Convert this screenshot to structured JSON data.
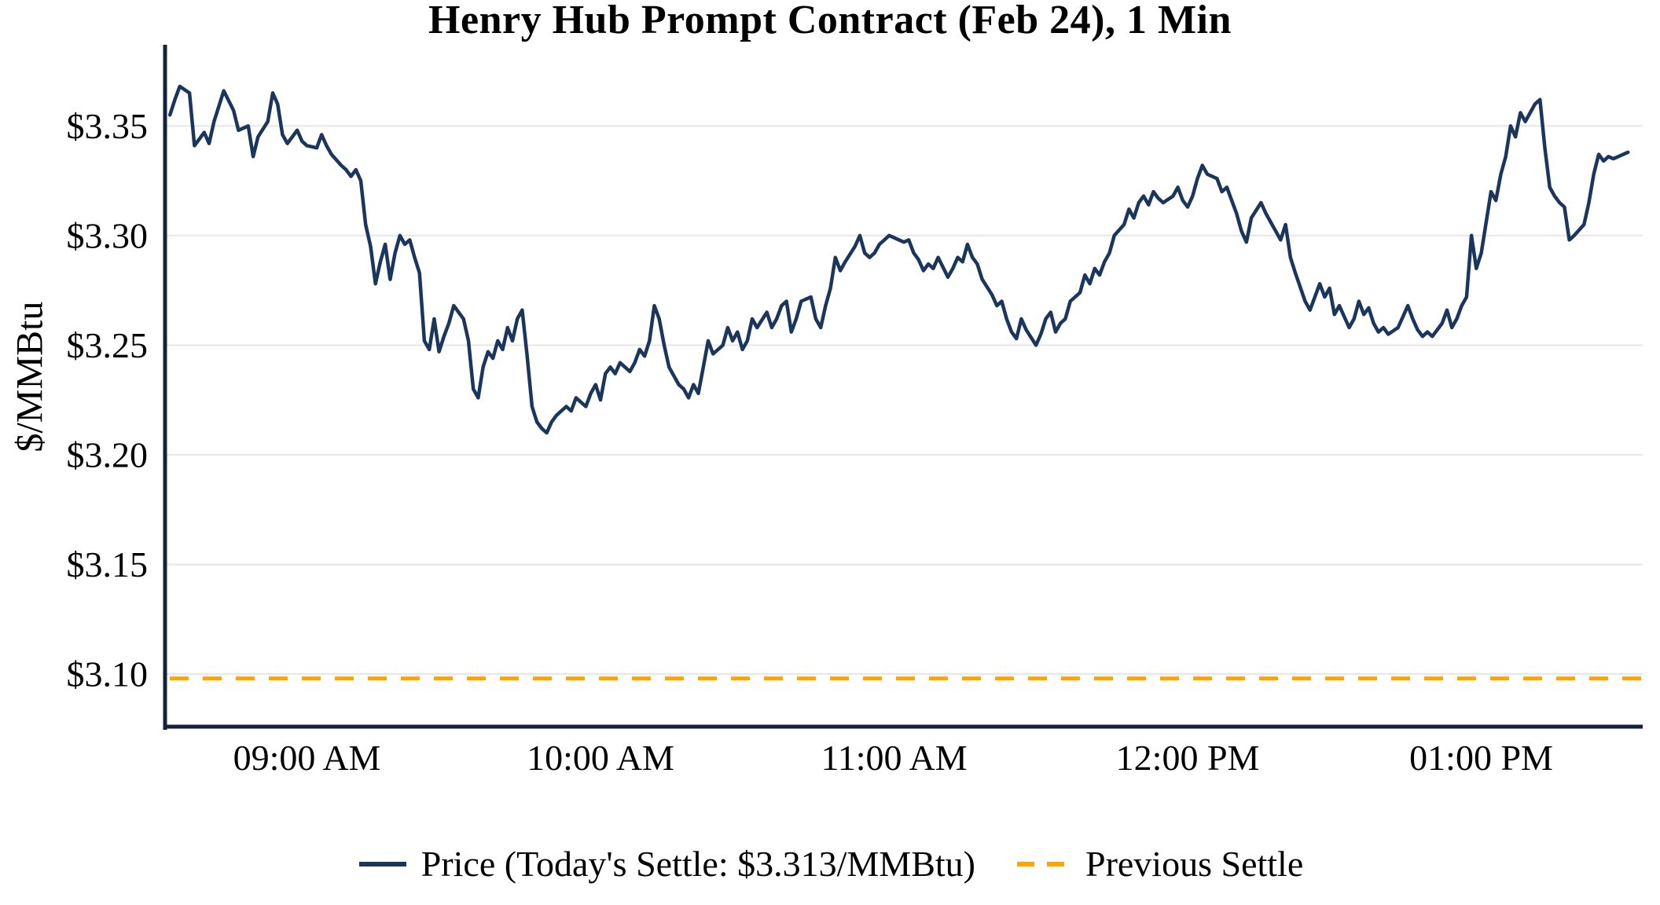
{
  "title": "Henry Hub Prompt Contract (Feb 24), 1 Min",
  "y_axis_label": "$/MMBtu",
  "legend": {
    "price_label": "Price (Today's Settle: $3.313/MMBtu)",
    "previous_settle_label": "Previous Settle"
  },
  "colors": {
    "price_line": "#1b365d",
    "previous_settle": "#FFA500",
    "grid": "#e7e7e7",
    "axis": "#14213d"
  },
  "chart_data": {
    "type": "line",
    "title": "Henry Hub Prompt Contract (Feb 24), 1 Min",
    "xlabel": "",
    "ylabel": "$/MMBtu",
    "x_unit": "minutes-of-day",
    "xlim": [
      511,
      813
    ],
    "ylim": [
      3.076,
      3.387
    ],
    "grid": "horizontal",
    "legend_position": "bottom",
    "todays_settle": 3.313,
    "previous_settle": 3.098,
    "x_ticks": [
      {
        "t": 540,
        "label": "09:00 AM"
      },
      {
        "t": 600,
        "label": "10:00 AM"
      },
      {
        "t": 660,
        "label": "11:00 AM"
      },
      {
        "t": 720,
        "label": "12:00 PM"
      },
      {
        "t": 780,
        "label": "01:00 PM"
      }
    ],
    "y_ticks": [
      {
        "v": 3.1,
        "label": "$3.10"
      },
      {
        "v": 3.15,
        "label": "$3.15"
      },
      {
        "v": 3.2,
        "label": "$3.20"
      },
      {
        "v": 3.25,
        "label": "$3.25"
      },
      {
        "v": 3.3,
        "label": "$3.30"
      },
      {
        "v": 3.35,
        "label": "$3.35"
      }
    ],
    "series": [
      {
        "name": "Price",
        "points": [
          [
            512,
            3.355
          ],
          [
            513,
            3.362
          ],
          [
            514,
            3.368
          ],
          [
            516,
            3.365
          ],
          [
            517,
            3.341
          ],
          [
            519,
            3.347
          ],
          [
            520,
            3.342
          ],
          [
            521,
            3.352
          ],
          [
            523,
            3.366
          ],
          [
            525,
            3.357
          ],
          [
            526,
            3.348
          ],
          [
            528,
            3.35
          ],
          [
            529,
            3.336
          ],
          [
            530,
            3.345
          ],
          [
            532,
            3.352
          ],
          [
            533,
            3.365
          ],
          [
            534,
            3.36
          ],
          [
            535,
            3.346
          ],
          [
            536,
            3.342
          ],
          [
            538,
            3.348
          ],
          [
            539,
            3.343
          ],
          [
            540,
            3.341
          ],
          [
            542,
            3.34
          ],
          [
            543,
            3.346
          ],
          [
            544,
            3.341
          ],
          [
            545,
            3.337
          ],
          [
            547,
            3.332
          ],
          [
            548,
            3.33
          ],
          [
            549,
            3.327
          ],
          [
            550,
            3.33
          ],
          [
            551,
            3.325
          ],
          [
            552,
            3.305
          ],
          [
            553,
            3.295
          ],
          [
            554,
            3.278
          ],
          [
            555,
            3.288
          ],
          [
            556,
            3.296
          ],
          [
            557,
            3.28
          ],
          [
            558,
            3.292
          ],
          [
            559,
            3.3
          ],
          [
            560,
            3.296
          ],
          [
            561,
            3.298
          ],
          [
            562,
            3.29
          ],
          [
            563,
            3.283
          ],
          [
            564,
            3.252
          ],
          [
            565,
            3.248
          ],
          [
            566,
            3.262
          ],
          [
            567,
            3.247
          ],
          [
            568,
            3.254
          ],
          [
            569,
            3.26
          ],
          [
            570,
            3.268
          ],
          [
            571,
            3.265
          ],
          [
            572,
            3.262
          ],
          [
            573,
            3.252
          ],
          [
            574,
            3.23
          ],
          [
            575,
            3.226
          ],
          [
            576,
            3.24
          ],
          [
            577,
            3.247
          ],
          [
            578,
            3.244
          ],
          [
            579,
            3.252
          ],
          [
            580,
            3.248
          ],
          [
            581,
            3.258
          ],
          [
            582,
            3.252
          ],
          [
            583,
            3.262
          ],
          [
            584,
            3.266
          ],
          [
            585,
            3.245
          ],
          [
            586,
            3.222
          ],
          [
            587,
            3.215
          ],
          [
            588,
            3.212
          ],
          [
            589,
            3.21
          ],
          [
            590,
            3.215
          ],
          [
            591,
            3.218
          ],
          [
            592,
            3.22
          ],
          [
            593,
            3.222
          ],
          [
            594,
            3.22
          ],
          [
            595,
            3.226
          ],
          [
            597,
            3.222
          ],
          [
            598,
            3.228
          ],
          [
            599,
            3.232
          ],
          [
            600,
            3.225
          ],
          [
            601,
            3.237
          ],
          [
            602,
            3.24
          ],
          [
            603,
            3.237
          ],
          [
            604,
            3.242
          ],
          [
            606,
            3.238
          ],
          [
            607,
            3.242
          ],
          [
            608,
            3.248
          ],
          [
            609,
            3.245
          ],
          [
            610,
            3.252
          ],
          [
            611,
            3.268
          ],
          [
            612,
            3.262
          ],
          [
            613,
            3.25
          ],
          [
            614,
            3.24
          ],
          [
            616,
            3.232
          ],
          [
            617,
            3.23
          ],
          [
            618,
            3.226
          ],
          [
            619,
            3.232
          ],
          [
            620,
            3.228
          ],
          [
            621,
            3.24
          ],
          [
            622,
            3.252
          ],
          [
            623,
            3.246
          ],
          [
            625,
            3.25
          ],
          [
            626,
            3.258
          ],
          [
            627,
            3.252
          ],
          [
            628,
            3.256
          ],
          [
            629,
            3.248
          ],
          [
            630,
            3.252
          ],
          [
            631,
            3.262
          ],
          [
            632,
            3.258
          ],
          [
            634,
            3.265
          ],
          [
            635,
            3.258
          ],
          [
            636,
            3.262
          ],
          [
            637,
            3.268
          ],
          [
            638,
            3.27
          ],
          [
            639,
            3.256
          ],
          [
            640,
            3.262
          ],
          [
            641,
            3.27
          ],
          [
            643,
            3.272
          ],
          [
            644,
            3.262
          ],
          [
            645,
            3.258
          ],
          [
            646,
            3.268
          ],
          [
            647,
            3.276
          ],
          [
            648,
            3.29
          ],
          [
            649,
            3.284
          ],
          [
            650,
            3.288
          ],
          [
            652,
            3.295
          ],
          [
            653,
            3.3
          ],
          [
            654,
            3.292
          ],
          [
            655,
            3.29
          ],
          [
            656,
            3.292
          ],
          [
            657,
            3.296
          ],
          [
            658,
            3.298
          ],
          [
            659,
            3.3
          ],
          [
            661,
            3.298
          ],
          [
            662,
            3.297
          ],
          [
            663,
            3.298
          ],
          [
            664,
            3.292
          ],
          [
            665,
            3.289
          ],
          [
            666,
            3.284
          ],
          [
            667,
            3.287
          ],
          [
            668,
            3.285
          ],
          [
            669,
            3.29
          ],
          [
            671,
            3.281
          ],
          [
            672,
            3.285
          ],
          [
            673,
            3.29
          ],
          [
            674,
            3.288
          ],
          [
            675,
            3.296
          ],
          [
            676,
            3.29
          ],
          [
            677,
            3.287
          ],
          [
            678,
            3.28
          ],
          [
            680,
            3.273
          ],
          [
            681,
            3.268
          ],
          [
            682,
            3.27
          ],
          [
            683,
            3.262
          ],
          [
            684,
            3.256
          ],
          [
            685,
            3.253
          ],
          [
            686,
            3.262
          ],
          [
            687,
            3.257
          ],
          [
            689,
            3.25
          ],
          [
            690,
            3.255
          ],
          [
            691,
            3.262
          ],
          [
            692,
            3.265
          ],
          [
            693,
            3.256
          ],
          [
            694,
            3.26
          ],
          [
            695,
            3.262
          ],
          [
            696,
            3.27
          ],
          [
            698,
            3.274
          ],
          [
            699,
            3.282
          ],
          [
            700,
            3.278
          ],
          [
            701,
            3.285
          ],
          [
            702,
            3.282
          ],
          [
            703,
            3.288
          ],
          [
            704,
            3.292
          ],
          [
            705,
            3.3
          ],
          [
            707,
            3.305
          ],
          [
            708,
            3.312
          ],
          [
            709,
            3.308
          ],
          [
            710,
            3.315
          ],
          [
            711,
            3.318
          ],
          [
            712,
            3.314
          ],
          [
            713,
            3.32
          ],
          [
            714,
            3.317
          ],
          [
            715,
            3.315
          ],
          [
            717,
            3.318
          ],
          [
            718,
            3.322
          ],
          [
            719,
            3.316
          ],
          [
            720,
            3.313
          ],
          [
            721,
            3.318
          ],
          [
            722,
            3.326
          ],
          [
            723,
            3.332
          ],
          [
            724,
            3.328
          ],
          [
            726,
            3.326
          ],
          [
            727,
            3.32
          ],
          [
            728,
            3.322
          ],
          [
            729,
            3.316
          ],
          [
            730,
            3.31
          ],
          [
            731,
            3.302
          ],
          [
            732,
            3.297
          ],
          [
            733,
            3.308
          ],
          [
            735,
            3.315
          ],
          [
            736,
            3.31
          ],
          [
            737,
            3.306
          ],
          [
            738,
            3.302
          ],
          [
            739,
            3.298
          ],
          [
            740,
            3.305
          ],
          [
            741,
            3.29
          ],
          [
            742,
            3.283
          ],
          [
            744,
            3.27
          ],
          [
            745,
            3.266
          ],
          [
            746,
            3.272
          ],
          [
            747,
            3.278
          ],
          [
            748,
            3.272
          ],
          [
            749,
            3.276
          ],
          [
            750,
            3.264
          ],
          [
            751,
            3.268
          ],
          [
            753,
            3.258
          ],
          [
            754,
            3.262
          ],
          [
            755,
            3.27
          ],
          [
            756,
            3.264
          ],
          [
            757,
            3.267
          ],
          [
            758,
            3.26
          ],
          [
            759,
            3.256
          ],
          [
            760,
            3.258
          ],
          [
            761,
            3.255
          ],
          [
            763,
            3.258
          ],
          [
            764,
            3.263
          ],
          [
            765,
            3.268
          ],
          [
            766,
            3.262
          ],
          [
            767,
            3.257
          ],
          [
            768,
            3.254
          ],
          [
            769,
            3.256
          ],
          [
            770,
            3.254
          ],
          [
            772,
            3.26
          ],
          [
            773,
            3.266
          ],
          [
            774,
            3.258
          ],
          [
            775,
            3.262
          ],
          [
            776,
            3.268
          ],
          [
            777,
            3.272
          ],
          [
            778,
            3.3
          ],
          [
            779,
            3.285
          ],
          [
            780,
            3.292
          ],
          [
            782,
            3.32
          ],
          [
            783,
            3.316
          ],
          [
            784,
            3.328
          ],
          [
            785,
            3.336
          ],
          [
            786,
            3.35
          ],
          [
            787,
            3.345
          ],
          [
            788,
            3.356
          ],
          [
            789,
            3.352
          ],
          [
            791,
            3.36
          ],
          [
            792,
            3.362
          ],
          [
            793,
            3.34
          ],
          [
            794,
            3.322
          ],
          [
            795,
            3.318
          ],
          [
            796,
            3.315
          ],
          [
            797,
            3.313
          ],
          [
            798,
            3.298
          ],
          [
            799,
            3.3
          ],
          [
            801,
            3.305
          ],
          [
            802,
            3.315
          ],
          [
            803,
            3.328
          ],
          [
            804,
            3.337
          ],
          [
            805,
            3.334
          ],
          [
            806,
            3.336
          ],
          [
            807,
            3.335
          ],
          [
            808,
            3.336
          ],
          [
            810,
            3.338
          ]
        ]
      }
    ]
  }
}
